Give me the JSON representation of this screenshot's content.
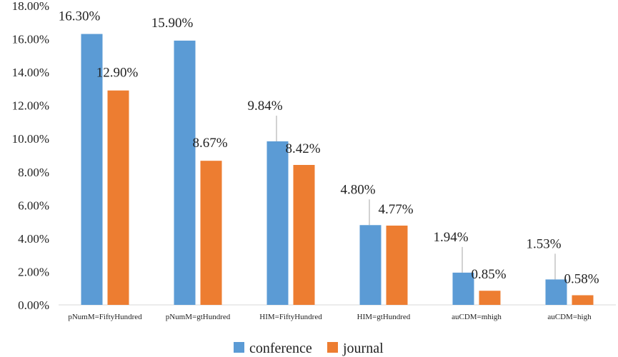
{
  "chart_data": {
    "type": "bar",
    "title": "",
    "xlabel": "",
    "ylabel": "",
    "categories": [
      "pNumM=FiftyHundred",
      "pNumM=gtHundred",
      "HIM=FiftyHundred",
      "HIM=gtHundred",
      "auCDM=mhigh",
      "auCDM=high"
    ],
    "series": [
      {
        "name": "conference",
        "color": "#5B9BD5",
        "values": [
          16.3,
          15.9,
          9.84,
          4.8,
          1.94,
          1.53
        ],
        "labels": [
          "16.30%",
          "15.90%",
          "9.84%",
          "4.80%",
          "1.94%",
          "1.53%"
        ]
      },
      {
        "name": "journal",
        "color": "#ED7D31",
        "values": [
          12.9,
          8.67,
          8.42,
          4.77,
          0.85,
          0.58
        ],
        "labels": [
          "12.90%",
          "8.67%",
          "8.42%",
          "4.77%",
          "0.85%",
          "0.58%"
        ]
      }
    ],
    "ylim": [
      0,
      18
    ],
    "ytick_labels": [
      "0.00%",
      "2.00%",
      "4.00%",
      "6.00%",
      "8.00%",
      "10.00%",
      "12.00%",
      "14.00%",
      "16.00%",
      "18.00%"
    ],
    "grid": false,
    "legend": "bottom-center"
  }
}
